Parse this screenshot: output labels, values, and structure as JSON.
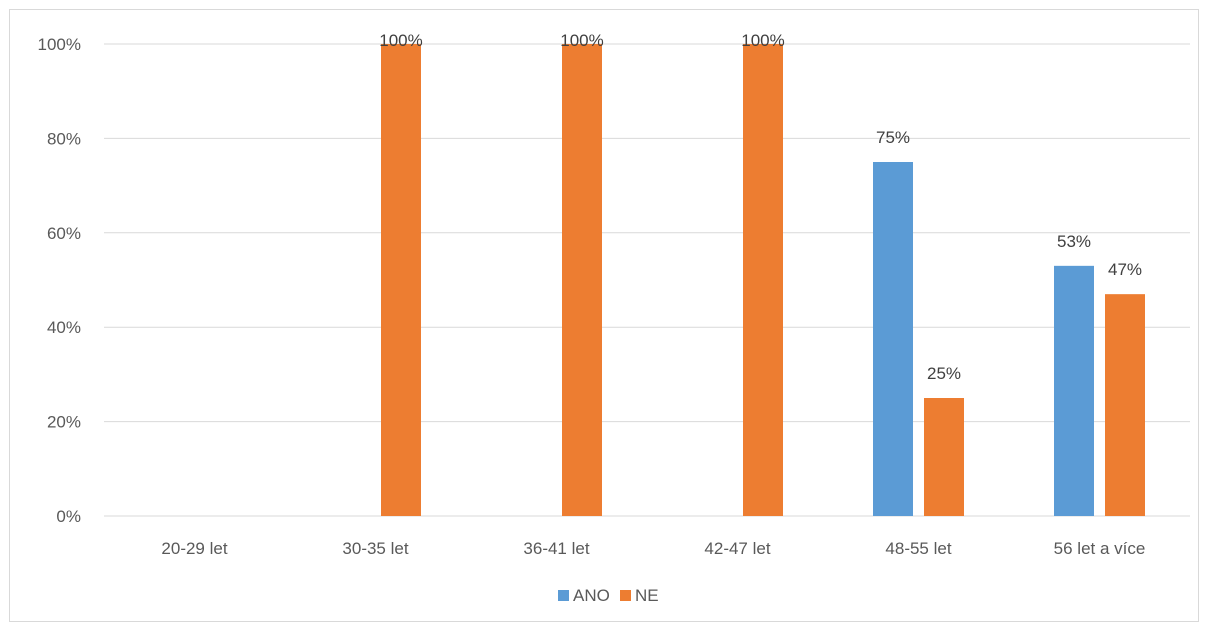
{
  "chart_data": {
    "type": "bar",
    "categories": [
      "20-29 let",
      "30-35 let",
      "36-41 let",
      "42-47 let",
      "48-55 let",
      "56 let a více"
    ],
    "series": [
      {
        "name": "ANO",
        "values": [
          0,
          0,
          0,
          0,
          75,
          53
        ],
        "data_labels": [
          "",
          "",
          "",
          "",
          "75%",
          "53%"
        ],
        "color": "#5b9bd5"
      },
      {
        "name": "NE",
        "values": [
          0,
          100,
          100,
          100,
          25,
          47
        ],
        "data_labels": [
          "",
          "100%",
          "100%",
          "100%",
          "25%",
          "47%"
        ],
        "color": "#ed7d31"
      }
    ],
    "ylim": [
      0,
      100
    ],
    "yticks": [
      0,
      20,
      40,
      60,
      80,
      100
    ],
    "ytick_labels": [
      "0%",
      "20%",
      "40%",
      "60%",
      "80%",
      "100%"
    ],
    "grid": true,
    "legend_position": "bottom",
    "gridline_color": "#d9d9d9"
  }
}
